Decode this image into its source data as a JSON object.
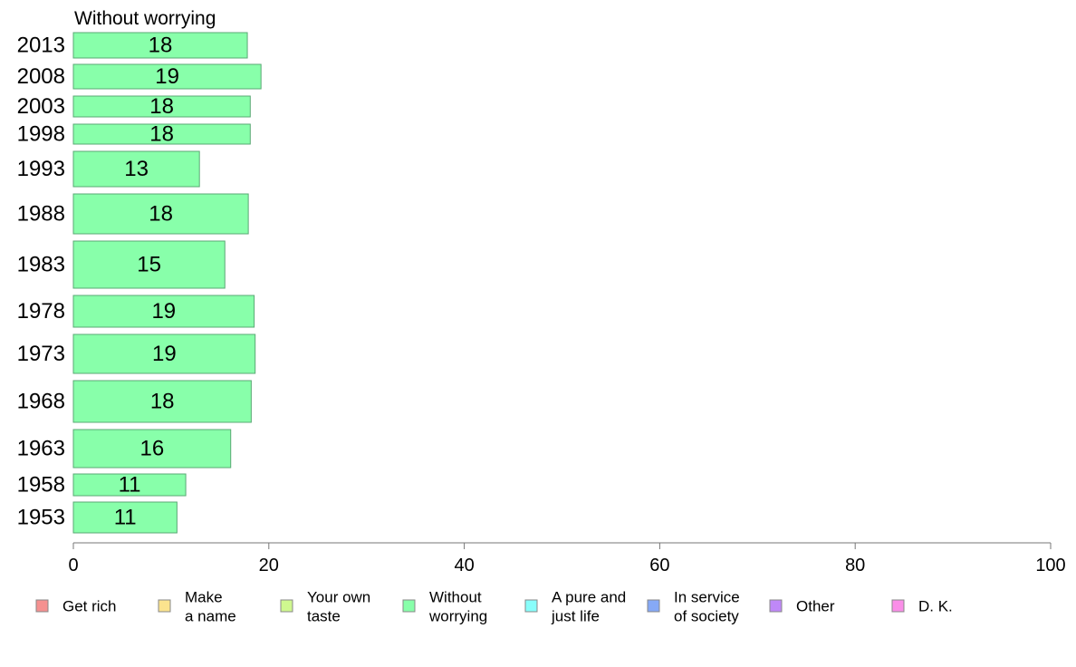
{
  "chart_data": {
    "type": "bar",
    "orientation": "horizontal",
    "title": "Without worrying",
    "categories": [
      "2013",
      "2008",
      "2003",
      "1998",
      "1993",
      "1988",
      "1983",
      "1978",
      "1973",
      "1968",
      "1963",
      "1958",
      "1953"
    ],
    "values": [
      18,
      19,
      18,
      18,
      13,
      18,
      15,
      19,
      19,
      18,
      16,
      11,
      11
    ],
    "bar_values_precise": [
      17.8,
      19.2,
      18.1,
      18.1,
      12.9,
      17.9,
      15.5,
      18.5,
      18.6,
      18.2,
      16.1,
      11.5,
      10.6
    ],
    "xlim": [
      0,
      100
    ],
    "xticks": [
      0,
      20,
      40,
      60,
      80,
      100
    ],
    "grid": false,
    "bar_color": "#88ffaa",
    "bar_stroke": "#5aa874",
    "legend": {
      "placement": "bottom",
      "entries": [
        {
          "label": [
            "Get rich"
          ],
          "color": "#f59190"
        },
        {
          "label": [
            "Make",
            "a name"
          ],
          "color": "#fbe38e"
        },
        {
          "label": [
            "Your own",
            "taste"
          ],
          "color": "#cff88f"
        },
        {
          "label": [
            "Without",
            "worrying"
          ],
          "color": "#88ffaa"
        },
        {
          "label": [
            "A pure and",
            "just life"
          ],
          "color": "#88fefb"
        },
        {
          "label": [
            "In service",
            "of society"
          ],
          "color": "#86a9f6"
        },
        {
          "label": [
            "Other"
          ],
          "color": "#bf88f8"
        },
        {
          "label": [
            "D. K."
          ],
          "color": "#fa8ee8"
        }
      ]
    }
  }
}
